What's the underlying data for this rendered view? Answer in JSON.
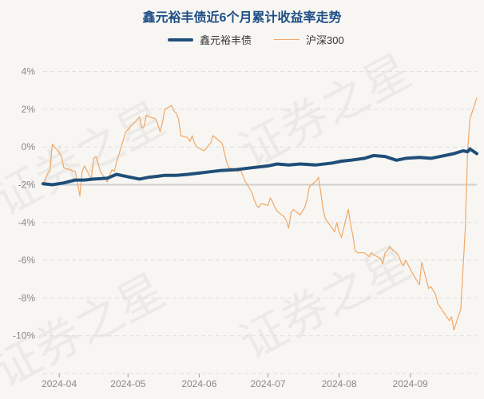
{
  "chart_data": {
    "type": "line",
    "title": "鑫元裕丰债近6个月累计收益率走势",
    "xlabel": "",
    "ylabel": "",
    "y_unit": "%",
    "ylim": [
      -12,
      5
    ],
    "yticks": [
      4,
      2,
      0,
      -2,
      -4,
      -6,
      -8,
      -10
    ],
    "xticks": [
      "2024-04",
      "2024-05",
      "2024-06",
      "2024-07",
      "2024-08",
      "2024-09"
    ],
    "grid": true,
    "legend_position": "top-center",
    "series": [
      {
        "name": "鑫元裕丰债",
        "color": "#1f4e79",
        "points": [
          [
            "2024-03-25",
            -1.95
          ],
          [
            "2024-03-29",
            -2.0
          ],
          [
            "2024-04-03",
            -1.9
          ],
          [
            "2024-04-08",
            -1.75
          ],
          [
            "2024-04-12",
            -1.75
          ],
          [
            "2024-04-16",
            -1.7
          ],
          [
            "2024-04-22",
            -1.65
          ],
          [
            "2024-04-26",
            -1.45
          ],
          [
            "2024-04-30",
            -1.55
          ],
          [
            "2024-05-06",
            -1.7
          ],
          [
            "2024-05-10",
            -1.6
          ],
          [
            "2024-05-14",
            -1.55
          ],
          [
            "2024-05-17",
            -1.5
          ],
          [
            "2024-05-22",
            -1.5
          ],
          [
            "2024-05-27",
            -1.45
          ],
          [
            "2024-06-03",
            -1.35
          ],
          [
            "2024-06-10",
            -1.25
          ],
          [
            "2024-06-17",
            -1.2
          ],
          [
            "2024-06-24",
            -1.1
          ],
          [
            "2024-07-01",
            -1.0
          ],
          [
            "2024-07-05",
            -0.9
          ],
          [
            "2024-07-10",
            -0.95
          ],
          [
            "2024-07-15",
            -0.9
          ],
          [
            "2024-07-22",
            -0.95
          ],
          [
            "2024-07-29",
            -0.85
          ],
          [
            "2024-08-02",
            -0.75
          ],
          [
            "2024-08-06",
            -0.7
          ],
          [
            "2024-08-12",
            -0.6
          ],
          [
            "2024-08-16",
            -0.45
          ],
          [
            "2024-08-21",
            -0.5
          ],
          [
            "2024-08-26",
            -0.7
          ],
          [
            "2024-08-30",
            -0.6
          ],
          [
            "2024-09-05",
            -0.55
          ],
          [
            "2024-09-10",
            -0.6
          ],
          [
            "2024-09-16",
            -0.45
          ],
          [
            "2024-09-20",
            -0.35
          ],
          [
            "2024-09-24",
            -0.2
          ],
          [
            "2024-09-26",
            -0.25
          ],
          [
            "2024-09-27",
            -0.1
          ],
          [
            "2024-09-30",
            -0.35
          ]
        ]
      },
      {
        "name": "沪深300",
        "color": "#f0a868",
        "points": [
          [
            "2024-03-25",
            -2.0
          ],
          [
            "2024-03-27",
            -1.4
          ],
          [
            "2024-03-28",
            -1.2
          ],
          [
            "2024-03-29",
            0.15
          ],
          [
            "2024-04-01",
            -0.3
          ],
          [
            "2024-04-02",
            -0.5
          ],
          [
            "2024-04-03",
            -1.1
          ],
          [
            "2024-04-08",
            -1.3
          ],
          [
            "2024-04-09",
            -1.9
          ],
          [
            "2024-04-10",
            -2.6
          ],
          [
            "2024-04-11",
            -1.3
          ],
          [
            "2024-04-12",
            -1.0
          ],
          [
            "2024-04-15",
            -1.7
          ],
          [
            "2024-04-16",
            -0.6
          ],
          [
            "2024-04-17",
            -0.5
          ],
          [
            "2024-04-18",
            -0.9
          ],
          [
            "2024-04-19",
            -1.3
          ],
          [
            "2024-04-22",
            -1.85
          ],
          [
            "2024-04-23",
            -1.5
          ],
          [
            "2024-04-24",
            -1.2
          ],
          [
            "2024-04-25",
            -1.3
          ],
          [
            "2024-04-26",
            -0.8
          ],
          [
            "2024-04-29",
            0.4
          ],
          [
            "2024-04-30",
            0.8
          ],
          [
            "2024-05-06",
            1.6
          ],
          [
            "2024-05-07",
            1.0
          ],
          [
            "2024-05-08",
            1.1
          ],
          [
            "2024-05-09",
            1.7
          ],
          [
            "2024-05-10",
            1.6
          ],
          [
            "2024-05-13",
            1.5
          ],
          [
            "2024-05-14",
            1.2
          ],
          [
            "2024-05-15",
            0.8
          ],
          [
            "2024-05-16",
            1.3
          ],
          [
            "2024-05-17",
            2.0
          ],
          [
            "2024-05-20",
            2.2
          ],
          [
            "2024-05-21",
            1.9
          ],
          [
            "2024-05-22",
            1.8
          ],
          [
            "2024-05-23",
            1.5
          ],
          [
            "2024-05-24",
            0.6
          ],
          [
            "2024-05-27",
            0.5
          ],
          [
            "2024-05-28",
            0.3
          ],
          [
            "2024-05-29",
            0.6
          ],
          [
            "2024-05-30",
            0.2
          ],
          [
            "2024-05-31",
            0.0
          ],
          [
            "2024-06-03",
            -0.2
          ],
          [
            "2024-06-04",
            -0.1
          ],
          [
            "2024-06-05",
            0.1
          ],
          [
            "2024-06-06",
            0.2
          ],
          [
            "2024-06-07",
            0.6
          ],
          [
            "2024-06-11",
            0.2
          ],
          [
            "2024-06-12",
            -0.3
          ],
          [
            "2024-06-13",
            -0.8
          ],
          [
            "2024-06-14",
            -1.1
          ],
          [
            "2024-06-17",
            -1.2
          ],
          [
            "2024-06-18",
            -1.3
          ],
          [
            "2024-06-19",
            -1.2
          ],
          [
            "2024-06-20",
            -1.5
          ],
          [
            "2024-06-21",
            -1.8
          ],
          [
            "2024-06-24",
            -2.4
          ],
          [
            "2024-06-25",
            -2.8
          ],
          [
            "2024-06-26",
            -3.1
          ],
          [
            "2024-06-27",
            -3.2
          ],
          [
            "2024-06-28",
            -3.0
          ],
          [
            "2024-07-01",
            -3.1
          ],
          [
            "2024-07-02",
            -2.7
          ],
          [
            "2024-07-03",
            -2.9
          ],
          [
            "2024-07-04",
            -3.2
          ],
          [
            "2024-07-05",
            -3.4
          ],
          [
            "2024-07-08",
            -3.7
          ],
          [
            "2024-07-09",
            -3.9
          ],
          [
            "2024-07-10",
            -4.3
          ],
          [
            "2024-07-11",
            -3.5
          ],
          [
            "2024-07-12",
            -3.3
          ],
          [
            "2024-07-15",
            -3.6
          ],
          [
            "2024-07-16",
            -3.4
          ],
          [
            "2024-07-17",
            -3.2
          ],
          [
            "2024-07-18",
            -2.8
          ],
          [
            "2024-07-19",
            -2.1
          ],
          [
            "2024-07-22",
            -1.8
          ],
          [
            "2024-07-23",
            -1.6
          ],
          [
            "2024-07-24",
            -2.4
          ],
          [
            "2024-07-25",
            -3.3
          ],
          [
            "2024-07-26",
            -3.8
          ],
          [
            "2024-07-29",
            -4.3
          ],
          [
            "2024-07-30",
            -4.5
          ],
          [
            "2024-07-31",
            -4.0
          ],
          [
            "2024-08-01",
            -4.5
          ],
          [
            "2024-08-02",
            -4.8
          ],
          [
            "2024-08-05",
            -3.3
          ],
          [
            "2024-08-06",
            -4.1
          ],
          [
            "2024-08-07",
            -4.7
          ],
          [
            "2024-08-08",
            -5.5
          ],
          [
            "2024-08-09",
            -5.6
          ],
          [
            "2024-08-12",
            -5.6
          ],
          [
            "2024-08-13",
            -5.7
          ],
          [
            "2024-08-14",
            -5.8
          ],
          [
            "2024-08-15",
            -5.6
          ],
          [
            "2024-08-16",
            -5.7
          ],
          [
            "2024-08-19",
            -5.9
          ],
          [
            "2024-08-20",
            -6.2
          ],
          [
            "2024-08-21",
            -5.6
          ],
          [
            "2024-08-22",
            -5.5
          ],
          [
            "2024-08-23",
            -5.3
          ],
          [
            "2024-08-26",
            -5.6
          ],
          [
            "2024-08-27",
            -5.8
          ],
          [
            "2024-08-28",
            -6.1
          ],
          [
            "2024-08-29",
            -6.3
          ],
          [
            "2024-08-30",
            -6.0
          ],
          [
            "2024-09-02",
            -6.7
          ],
          [
            "2024-09-03",
            -6.9
          ],
          [
            "2024-09-04",
            -7.1
          ],
          [
            "2024-09-05",
            -7.3
          ],
          [
            "2024-09-06",
            -6.1
          ],
          [
            "2024-09-09",
            -7.5
          ],
          [
            "2024-09-10",
            -7.4
          ],
          [
            "2024-09-11",
            -7.6
          ],
          [
            "2024-09-12",
            -7.8
          ],
          [
            "2024-09-13",
            -8.3
          ],
          [
            "2024-09-18",
            -9.2
          ],
          [
            "2024-09-19",
            -9.0
          ],
          [
            "2024-09-20",
            -9.7
          ],
          [
            "2024-09-23",
            -8.6
          ],
          [
            "2024-09-24",
            -6.4
          ],
          [
            "2024-09-25",
            -4.3
          ],
          [
            "2024-09-26",
            -0.2
          ],
          [
            "2024-09-27",
            1.5
          ],
          [
            "2024-09-30",
            2.6
          ]
        ]
      }
    ]
  },
  "watermark": "证券之星"
}
